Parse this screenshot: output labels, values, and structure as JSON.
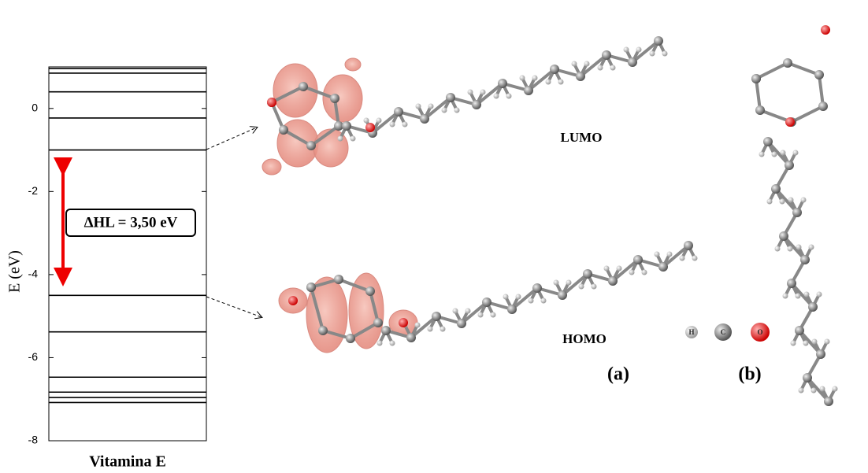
{
  "chart_data": {
    "type": "energy-levels",
    "ylabel": "E (eV)",
    "xlabel": "Vitamina E",
    "ylim": [
      -8,
      1
    ],
    "yticks": [
      0,
      -2,
      -4,
      -6,
      -8
    ],
    "levels": [
      0.96,
      0.85,
      0.4,
      -0.23,
      -1.0,
      -4.5,
      -5.38,
      -6.47,
      -6.83,
      -6.96,
      -7.08
    ],
    "line_color": "#000000",
    "gap_label": "ΔHL = 3,50 eV",
    "lumo_label": "LUMO",
    "homo_label": "HOMO",
    "panel_a": "(a)",
    "panel_b": "(b)",
    "atom_legend": [
      "H",
      "C",
      "O"
    ]
  }
}
